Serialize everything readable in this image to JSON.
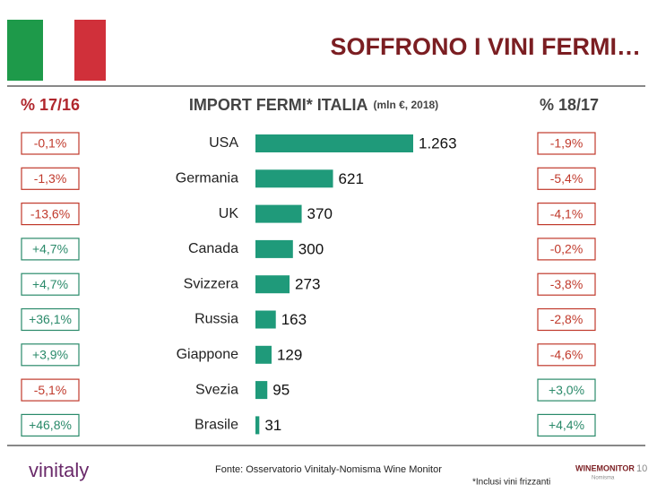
{
  "title": "SOFFRONO I VINI FERMI…",
  "chart_data": {
    "type": "bar",
    "orientation": "horizontal",
    "title": "IMPORT FERMI* ITALIA",
    "subtitle": "(mln €, 2018)",
    "categories": [
      "USA",
      "Germania",
      "UK",
      "Canada",
      "Svizzera",
      "Russia",
      "Giappone",
      "Svezia",
      "Brasile"
    ],
    "values": [
      1263,
      621,
      370,
      300,
      273,
      163,
      129,
      95,
      31
    ],
    "value_labels": [
      "1.263",
      "621",
      "370",
      "300",
      "273",
      "163",
      "129",
      "95",
      "31"
    ],
    "color": "#1f9a7a"
  },
  "left_column": {
    "header": "% 17/16",
    "labels": [
      "-0,1%",
      "-1,3%",
      "-13,6%",
      "+4,7%",
      "+4,7%",
      "+36,1%",
      "+3,9%",
      "-5,1%",
      "+46,8%"
    ],
    "colors": [
      "#c0392b",
      "#c0392b",
      "#c0392b",
      "#2a8a6a",
      "#2a8a6a",
      "#2a8a6a",
      "#2a8a6a",
      "#c0392b",
      "#2a8a6a"
    ]
  },
  "right_column": {
    "header": "% 18/17",
    "labels": [
      "-1,9%",
      "-5,4%",
      "-4,1%",
      "-0,2%",
      "-3,8%",
      "-2,8%",
      "-4,6%",
      "+3,0%",
      "+4,4%"
    ],
    "colors": [
      "#c0392b",
      "#c0392b",
      "#c0392b",
      "#c0392b",
      "#c0392b",
      "#c0392b",
      "#c0392b",
      "#2a8a6a",
      "#2a8a6a"
    ]
  },
  "footer": {
    "source": "Fonte: Osservatorio Vinitaly-Nomisma Wine Monitor",
    "note": "*Inclusi vini frizzanti",
    "page": "10",
    "logo_left": "vinitaly",
    "logo_right": "WINEMONITOR",
    "logo_right_sub": "Nomisma"
  }
}
